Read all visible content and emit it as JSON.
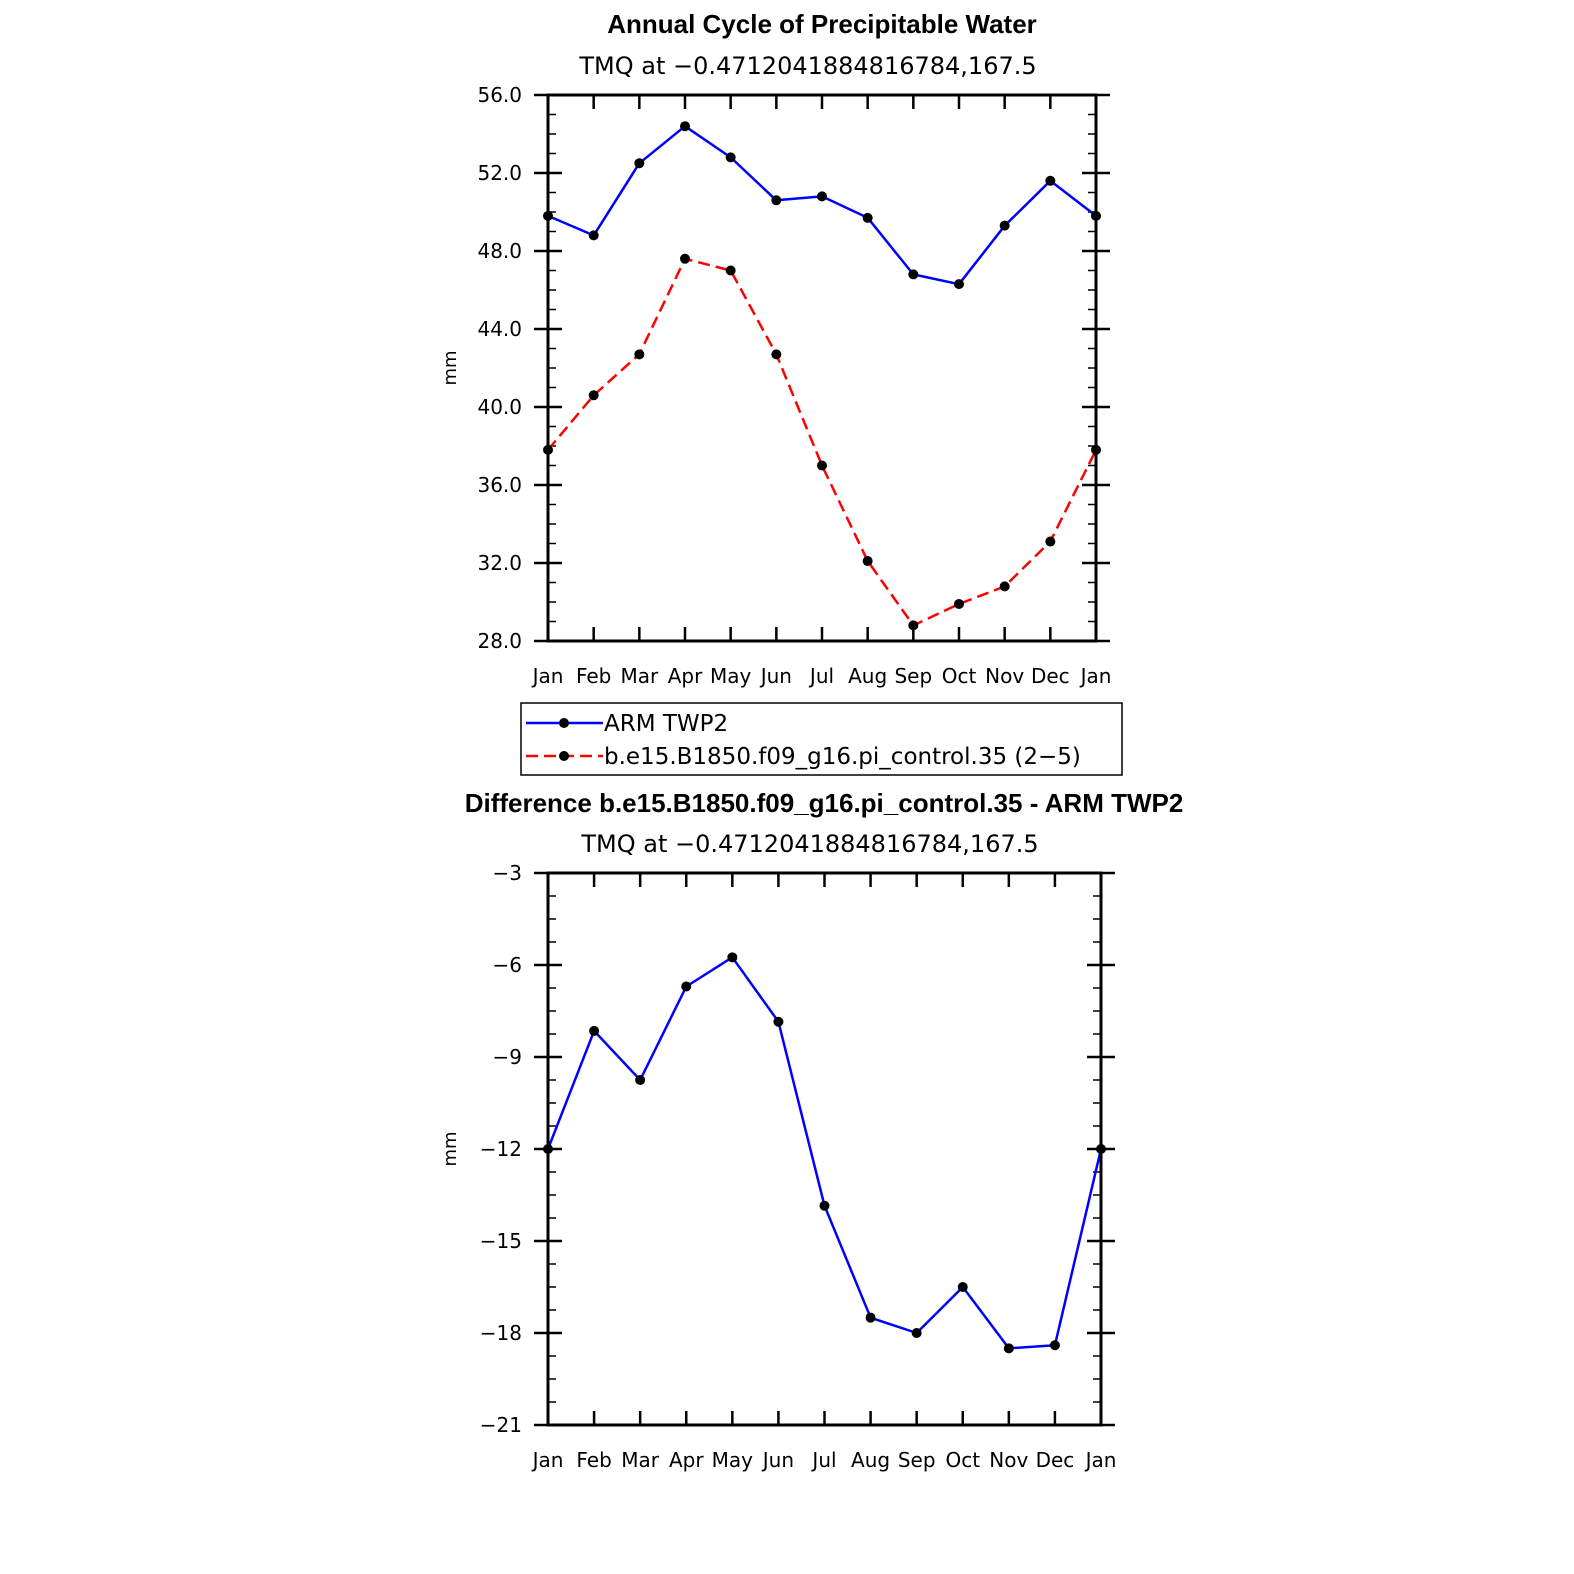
{
  "chart_data": [
    {
      "type": "line",
      "title": "Annual Cycle of Precipitable Water",
      "subtitle": "TMQ at −0.4712041884816784,167.5",
      "ylabel": "mm",
      "xlabel": "",
      "categories": [
        "Jan",
        "Feb",
        "Mar",
        "Apr",
        "May",
        "Jun",
        "Jul",
        "Aug",
        "Sep",
        "Oct",
        "Nov",
        "Dec",
        "Jan"
      ],
      "ylim": [
        28.0,
        56.0
      ],
      "yticks": [
        56.0,
        52.0,
        48.0,
        44.0,
        40.0,
        36.0,
        32.0,
        28.0
      ],
      "ytick_labels": [
        "56.0",
        "52.0",
        "48.0",
        "44.0",
        "40.0",
        "36.0",
        "32.0",
        "28.0"
      ],
      "legend_position": "below",
      "series": [
        {
          "name": "ARM TWP2",
          "color": "#0000ff",
          "dash": "solid",
          "values": [
            49.8,
            48.8,
            52.5,
            54.4,
            52.8,
            50.6,
            50.8,
            49.7,
            46.8,
            46.3,
            49.3,
            51.6,
            49.8
          ]
        },
        {
          "name": "b.e15.B1850.f09_g16.pi_control.35 (2−5)",
          "color": "#ff0000",
          "dash": "dashed",
          "values": [
            37.8,
            40.6,
            42.7,
            47.6,
            47.0,
            42.7,
            37.0,
            32.1,
            28.8,
            29.9,
            30.8,
            33.1,
            37.8
          ]
        }
      ]
    },
    {
      "type": "line",
      "title": "Difference b.e15.B1850.f09_g16.pi_control.35 - ARM TWP2",
      "subtitle": "TMQ at −0.4712041884816784,167.5",
      "ylabel": "mm",
      "xlabel": "",
      "categories": [
        "Jan",
        "Feb",
        "Mar",
        "Apr",
        "May",
        "Jun",
        "Jul",
        "Aug",
        "Sep",
        "Oct",
        "Nov",
        "Dec",
        "Jan"
      ],
      "ylim": [
        -21,
        -3
      ],
      "yticks": [
        -3,
        -6,
        -9,
        -12,
        -15,
        -18,
        -21
      ],
      "ytick_labels": [
        "−3",
        "−6",
        "−9",
        "−12",
        "−15",
        "−18",
        "−21"
      ],
      "series": [
        {
          "color": "#0000ff",
          "dash": "solid",
          "values": [
            -12.0,
            -8.15,
            -9.75,
            -6.7,
            -5.75,
            -7.85,
            -13.85,
            -17.5,
            -18.0,
            -16.5,
            -18.5,
            -18.4,
            -12.0
          ]
        }
      ]
    }
  ]
}
